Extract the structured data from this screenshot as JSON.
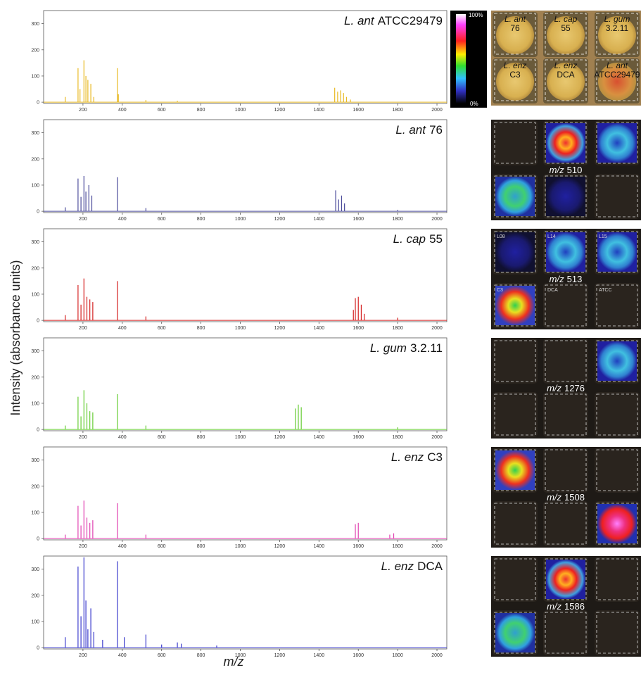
{
  "ylabel": "Intensity (absorbance units)",
  "xlabel": "m/z",
  "chart_data": [
    {
      "type": "stem",
      "species": "L. ant",
      "strain": "ATCC29479",
      "color": "#e8b923",
      "x": [
        110,
        175,
        185,
        205,
        215,
        225,
        240,
        255,
        375,
        380,
        520,
        680,
        1480,
        1495,
        1510,
        1525,
        1540,
        1560
      ],
      "values": [
        20,
        130,
        50,
        160,
        100,
        85,
        70,
        20,
        130,
        30,
        8,
        5,
        55,
        40,
        45,
        35,
        20,
        10
      ],
      "xlim": [
        0,
        2050
      ],
      "ylim": [
        -5,
        350
      ],
      "xticks": [
        200,
        400,
        600,
        800,
        1000,
        1200,
        1400,
        1600,
        1800,
        2000
      ],
      "yticks": [
        0,
        100,
        200,
        300
      ]
    },
    {
      "type": "stem",
      "species": "L. ant",
      "strain": "76",
      "color": "#4b4b9a",
      "x": [
        110,
        175,
        190,
        205,
        215,
        230,
        245,
        375,
        520,
        1485,
        1500,
        1515,
        1530,
        1800
      ],
      "values": [
        15,
        125,
        55,
        135,
        75,
        100,
        60,
        130,
        12,
        80,
        45,
        60,
        30,
        5
      ],
      "xlim": [
        0,
        2050
      ],
      "ylim": [
        -5,
        350
      ],
      "xticks": [
        200,
        400,
        600,
        800,
        1000,
        1200,
        1400,
        1600,
        1800,
        2000
      ],
      "yticks": [
        0,
        100,
        200,
        300
      ]
    },
    {
      "type": "stem",
      "species": "L. cap",
      "strain": "55",
      "color": "#d42020",
      "x": [
        110,
        175,
        190,
        205,
        220,
        235,
        250,
        375,
        520,
        1575,
        1585,
        1600,
        1615,
        1630,
        1800
      ],
      "values": [
        20,
        135,
        60,
        160,
        90,
        80,
        70,
        150,
        15,
        40,
        85,
        90,
        60,
        25,
        10
      ],
      "xlim": [
        0,
        2050
      ],
      "ylim": [
        -5,
        350
      ],
      "xticks": [
        200,
        400,
        600,
        800,
        1000,
        1200,
        1400,
        1600,
        1800,
        2000
      ],
      "yticks": [
        0,
        100,
        200,
        300
      ]
    },
    {
      "type": "stem",
      "species": "L. gum",
      "strain": "3.2.11",
      "color": "#66cc33",
      "x": [
        110,
        175,
        190,
        205,
        220,
        235,
        250,
        375,
        520,
        1280,
        1295,
        1310,
        1800
      ],
      "values": [
        15,
        125,
        50,
        150,
        100,
        70,
        65,
        135,
        15,
        80,
        95,
        85,
        8
      ],
      "xlim": [
        0,
        2050
      ],
      "ylim": [
        -5,
        350
      ],
      "xticks": [
        200,
        400,
        600,
        800,
        1000,
        1200,
        1400,
        1600,
        1800,
        2000
      ],
      "yticks": [
        0,
        100,
        200,
        300
      ]
    },
    {
      "type": "stem",
      "species": "L. enz",
      "strain": "C3",
      "color": "#e040b0",
      "x": [
        110,
        175,
        190,
        205,
        220,
        235,
        250,
        375,
        520,
        1585,
        1600,
        1760,
        1780
      ],
      "values": [
        15,
        125,
        50,
        145,
        80,
        60,
        70,
        135,
        15,
        55,
        60,
        15,
        20
      ],
      "xlim": [
        0,
        2050
      ],
      "ylim": [
        -5,
        350
      ],
      "xticks": [
        200,
        400,
        600,
        800,
        1000,
        1200,
        1400,
        1600,
        1800,
        2000
      ],
      "yticks": [
        0,
        100,
        200,
        300
      ]
    },
    {
      "type": "stem",
      "species": "L. enz",
      "strain": "DCA",
      "color": "#3b3bcc",
      "x": [
        110,
        175,
        190,
        205,
        215,
        225,
        240,
        255,
        300,
        375,
        410,
        520,
        600,
        680,
        700,
        880
      ],
      "values": [
        40,
        310,
        120,
        345,
        180,
        70,
        150,
        60,
        30,
        330,
        40,
        50,
        12,
        20,
        15,
        8
      ],
      "xlim": [
        0,
        2050
      ],
      "ylim": [
        -5,
        350
      ],
      "xticks": [
        200,
        400,
        600,
        800,
        1000,
        1200,
        1400,
        1600,
        1800,
        2000
      ],
      "yticks": [
        0,
        100,
        200,
        300
      ]
    }
  ],
  "colorbar": {
    "max_label": "100%",
    "min_label": "0%"
  },
  "photo": {
    "wells": [
      {
        "species": "L. ant",
        "strain": "76"
      },
      {
        "species": "L. cap",
        "strain": "55"
      },
      {
        "species": "L. gum",
        "strain": "3.2.11"
      },
      {
        "species": "L. enz",
        "strain": "C3"
      },
      {
        "species": "L. enz",
        "strain": "DCA"
      },
      {
        "species": "L. ant",
        "strain": "ATCC29479"
      }
    ]
  },
  "ion_images": [
    {
      "prefix": "m/z",
      "mass": 510
    },
    {
      "prefix": "m/z",
      "mass": 513,
      "well_labels": [
        "L08",
        "L14",
        "L15",
        "C3",
        "DCA",
        "ATCC"
      ]
    },
    {
      "prefix": "m/z",
      "mass": 1276
    },
    {
      "prefix": "m/z",
      "mass": 1508
    },
    {
      "prefix": "m/z",
      "mass": 1586
    }
  ]
}
